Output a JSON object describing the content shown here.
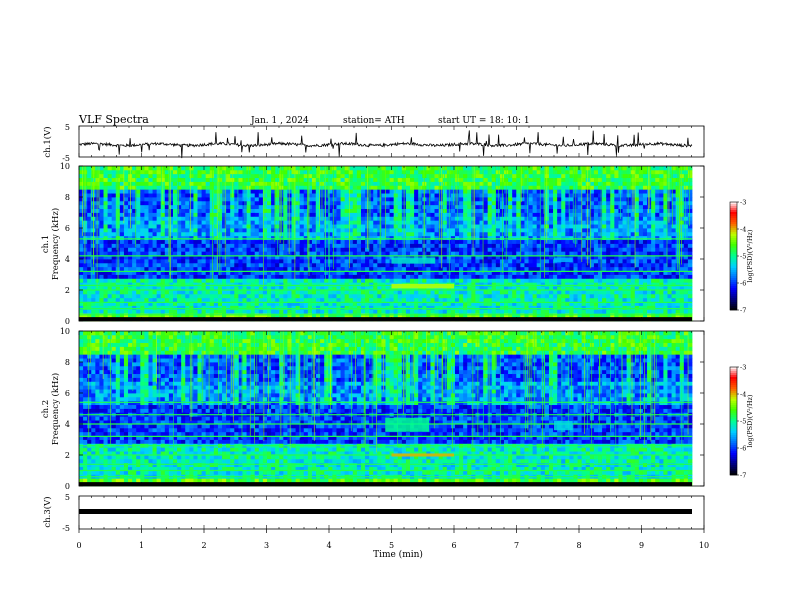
{
  "header": {
    "title": "VLF  Spectra",
    "date": "Jan.  1  , 2024",
    "station": "station= ATH",
    "start": "start  UT  =    18: 10: 1"
  },
  "colors": {
    "colormap": [
      "#000000",
      "#000080",
      "#0000ff",
      "#0070ff",
      "#00d0ff",
      "#00ff90",
      "#40ff00",
      "#c0ff00",
      "#ff6000",
      "#ff0000",
      "#ffffff"
    ],
    "trace": "#000000"
  },
  "chart_data": [
    {
      "type": "line",
      "panel": "ch1-waveform",
      "ylabel": "ch.1(V)",
      "yticks": [
        "5",
        "-5"
      ],
      "ylim": [
        -5,
        5
      ],
      "xlim": [
        0,
        10
      ],
      "baseline": -1,
      "note_signal": "noise around baseline with spikes"
    },
    {
      "type": "heatmap",
      "panel": "ch1-spectrogram",
      "ylabel": "ch.1\nFrequency  (kHz)",
      "yticks": [
        "10",
        "8",
        "6",
        "4",
        "2",
        "0"
      ],
      "ylim": [
        0,
        10
      ],
      "xlim": [
        0,
        10
      ],
      "colorbar": {
        "label": "log(PSD)(V²/Hz)",
        "ticks": [
          "-3",
          "-4",
          "-5",
          "-6",
          "-7"
        ],
        "range": [
          -7,
          -3
        ]
      },
      "lines_khz": [
        0.4,
        0.8,
        1.2,
        2.0,
        2.3,
        3.2,
        4.2,
        5.3
      ],
      "events": [
        {
          "t0": 5.0,
          "t1": 6.0,
          "f0": 2.1,
          "f1": 2.4,
          "level": -4.2
        },
        {
          "t0": 5.0,
          "t1": 5.7,
          "f0": 3.7,
          "f1": 4.1,
          "level": -5.2
        },
        {
          "t0": 7.6,
          "t1": 7.9,
          "f0": 3.8,
          "f1": 4.1,
          "level": -5.5
        }
      ]
    },
    {
      "type": "heatmap",
      "panel": "ch2-spectrogram",
      "ylabel": "ch.2\nFrequency  (kHz)",
      "yticks": [
        "10",
        "8",
        "6",
        "4",
        "2",
        "0"
      ],
      "ylim": [
        0,
        10
      ],
      "xlim": [
        0,
        10
      ],
      "colorbar": {
        "label": "log(PSD)(V²/Hz)",
        "ticks": [
          "-3",
          "-4",
          "-5",
          "-6",
          "-7"
        ],
        "range": [
          -7,
          -3
        ]
      },
      "lines_khz": [
        0.6,
        1.0,
        1.4,
        2.0,
        2.6,
        3.2,
        4.0,
        4.6,
        5.4
      ],
      "events": [
        {
          "t0": 5.0,
          "t1": 6.0,
          "f0": 1.9,
          "f1": 2.1,
          "level": -4.0
        },
        {
          "t0": 4.9,
          "t1": 5.6,
          "f0": 3.5,
          "f1": 4.4,
          "level": -5.0
        },
        {
          "t0": 7.6,
          "t1": 7.9,
          "f0": 3.6,
          "f1": 4.2,
          "level": -5.3
        }
      ]
    },
    {
      "type": "line",
      "panel": "ch3-waveform",
      "ylabel": "ch.3(V)",
      "yticks": [
        "5",
        "-5"
      ],
      "ylim": [
        -5,
        5
      ],
      "xlim": [
        0,
        10
      ],
      "baseline": -1.5
    }
  ],
  "xaxis": {
    "label": "Time  (min)",
    "ticks": [
      "0",
      "1",
      "2",
      "3",
      "4",
      "5",
      "6",
      "7",
      "8",
      "9",
      "10"
    ]
  }
}
